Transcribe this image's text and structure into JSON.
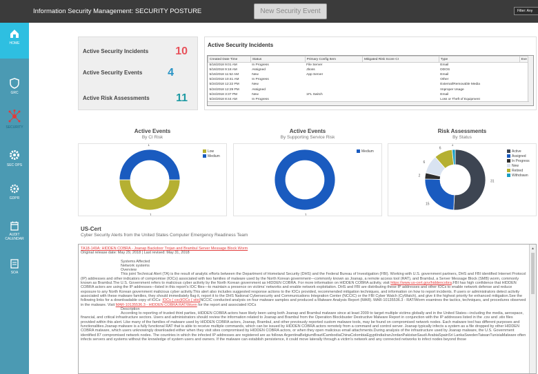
{
  "app": {
    "title": "Information Security Management: SECURITY POSTURE"
  },
  "toolbar": {
    "new_event_label": "New Security Event",
    "filter_label": "Filter: Any"
  },
  "sidebar": {
    "items": [
      {
        "label": "HOME",
        "icon": "home-icon",
        "active": true
      },
      {
        "label": "GRC",
        "icon": "shield-icon",
        "active": false
      },
      {
        "label": "SECURITY",
        "icon": "network-icon",
        "active": false
      },
      {
        "label": "SEC OPS",
        "icon": "gear-icon",
        "active": false
      },
      {
        "label": "GDPR",
        "icon": "gdpr-gear-icon",
        "active": false
      },
      {
        "label": "AUDIT CALENDAR",
        "icon": "calendar-icon",
        "active": false
      },
      {
        "label": "SOA",
        "icon": "document-icon",
        "active": false
      }
    ]
  },
  "kpis": [
    {
      "label": "Active Security Incidents",
      "value": "10",
      "color": "#e8515a"
    },
    {
      "label": "Active Security Events",
      "value": "4",
      "color": "#2793c5"
    },
    {
      "label": "Active Risk Assessments",
      "value": "11",
      "color": "#1d9aa3"
    }
  ],
  "incidents": {
    "title": "Active Security Incidents",
    "columns": [
      "Created Date Time",
      "Status",
      "Primary Config Item",
      "Mitigated Risk Score CI",
      "Type",
      "Eve"
    ],
    "rows": [
      [
        "5/16/2018 9:01 AM",
        "In Progress",
        "File Server",
        "",
        "Email",
        ""
      ],
      [
        "5/16/2018 9:18 AM",
        "Assigned",
        "Jboss",
        "",
        "DDOS",
        ""
      ],
      [
        "5/16/2018 11:52 AM",
        "New",
        "App Server",
        "",
        "Email",
        ""
      ],
      [
        "5/24/2018 10:41 AM",
        "In Progress",
        "",
        "",
        "Other",
        ""
      ],
      [
        "5/24/2018 12:22 PM",
        "New",
        "",
        "",
        "External/Removable Media",
        ""
      ],
      [
        "5/24/2018 12:29 PM",
        "Assigned",
        "",
        "",
        "Improper Usage",
        ""
      ],
      [
        "5/24/2018 3:37 PM",
        "New",
        "1FL Switch",
        "",
        "Email",
        ""
      ],
      [
        "5/24/2018 8:44 AM",
        "In Progress",
        "",
        "",
        "Loss or Theft of Equipment",
        ""
      ]
    ]
  },
  "charts": {
    "ci_risk": {
      "title": "Active Events",
      "subtitle": "By CI Risk",
      "legend": [
        "Low",
        "Medium"
      ]
    },
    "service_risk": {
      "title": "Active Events",
      "subtitle": "By Supporting Service Risk",
      "legend": [
        "Medium"
      ]
    },
    "risk_status": {
      "title": "Risk Assessments",
      "subtitle": "By Status",
      "legend": [
        "Active",
        "Assigned",
        "In Progress",
        "New",
        "Retired",
        "Withdrawn"
      ]
    }
  },
  "chart_data": [
    {
      "type": "pie",
      "title": "Active Events",
      "subtitle": "By CI Risk",
      "labels": [
        "Low",
        "Medium"
      ],
      "values": [
        1,
        1
      ],
      "colors": [
        "#b5b032",
        "#1a5bbf"
      ],
      "legend_position": "top-right"
    },
    {
      "type": "pie",
      "title": "Active Events",
      "subtitle": "By Supporting Service Risk",
      "labels": [
        "Medium"
      ],
      "values": [
        1
      ],
      "colors": [
        "#1a5bbf"
      ],
      "legend_position": "top-right"
    },
    {
      "type": "pie",
      "title": "Risk Assessments",
      "subtitle": "By Status",
      "labels": [
        "Active",
        "Assigned",
        "In Progress",
        "New",
        "Retired",
        "Withdrawn"
      ],
      "values": [
        31,
        15,
        2,
        6,
        6,
        1
      ],
      "colors": [
        "#3d4552",
        "#1a5bbf",
        "#2d2d2d",
        "#d9e3f1",
        "#b5b032",
        "#1a9ec4"
      ],
      "legend_position": "top-right"
    }
  ],
  "uscert": {
    "title": "US-Cert",
    "subtitle": "Cyber Security Alerts from the United States Computer Emergency Readiness Team",
    "alert_link": "TA18-149A: HIDDEN COBRA - Joanap Backdoor Trojan and Brambul Server Message Block Worm",
    "release_line": "Original release date: May 29, 2018 | Last revised: May 31, 2018",
    "sections": [
      "Systems Affected",
      "Network systems",
      "Overview"
    ],
    "para1_a": "This joint Technical Alert (TA) is the result of analytic efforts between the Department of Homeland Security (DHS) and the Federal Bureau of Investigation (FBI). Working with U.S. government partners, DHS and FBI identified Internet Protocol (IP) addresses and other indicators of compromise (IOCs) associated with two families of malware used by the North Korean government—commonly known as Joanap, a remote access tool (RAT), and Brambul, a Server Message Block (SMB) worm, commonly known as Brambul.The U.S. Government refers to malicious cyber activity by the North Korean government as HIDDEN COBRA. For more information on HIDDEN COBRA activity, visit",
    "para1_link": "https://www.us-cert.gov/hiddencobra",
    "para1_b": ".FBI has high confidence that HIDDEN COBRA actors are using the IP addresses—listed in this report’s IOC files—to maintain a presence on victims’ networks and enable network exploitation. DHS and FBI are distributing these IP addresses and other IOCs to enable network defense and reduce exposure to any North Korean government malicious cyber activity.This alert also includes suggested response actions to the IOCs provided, recommended mitigation techniques, and information on how to report incidents. If users or administrators detect activity associated with these malware families, they should immediately flag it, report it to the DHS National Cybersecurity and Communications Integration Center (NCCIC) or the FBI Cyber Watch (CyWatch), and give it the highest priority for enhanced mitigation.See the following links for a downloadable copy of IOCs:",
    "ioc_links": "IOCs ( csv)IOCs ( stix)",
    "para1_c": "NCCIC conducted analysis on four malware samples and produced a Malware Analysis Report (MAR). MAR-10135536.3 - RAT/Worm examines the tactics, techniques, and procedures observed in the malware. Visit",
    "mar_link": "MAR-10135536.3 - HIDDEN COBRA RAT/Worm",
    "para1_d": "for the report and associated IOCs",
    "description_heading": "Description",
    "para2": "According to reporting of trusted third parties, HIDDEN COBRA actors have likely been using both Joanap and Brambul malware since at least 2009 to target multiple victims globally and in the United States—including the media, aerospace, financial, and critical infrastructure sectors. Users and administrators should review the information related to Joanap and Brambul from the Operation Blockbuster Destructive Malware Report in conjunction with the IP addresses listed in the .csv and .stix files provided within this alert. Like many of the families of malware used by HIDDEN COBRA actors, Joanap, Brambul, and other previously reported custom malware tools, may be found on compromised network nodes. Each malware tool has different purposes and functionalities.Joanap malware is a fully functional RAT that is able to receive multiple commands, which can be issued by HIDDEN COBRA actors remotely from a command and control server. Joanap typically infects a system as a file dropped by other HIDDEN COBRA malware, which users unknowingly downloaded either when they visit sites compromised by HIDDEN COBRA actors, or when they open malicious email attachments.During analysis of the infrastructure used by Joanap malware, the U.S. Government identified 87 compromised network nodes. The countries in which the infected IP addresses are registered are as follows ArgentinaBelgiumBrazilCambodiaChinaColombiaEgyptIndiaIranJordanPakistanSaudi ArabiaSpainSri LankaSwedenTaiwanTunisiaMalware often infects servers and systems without the knowledge of system users and owners. If the malware can establish persistence, it could move laterally through a victim’s network and any connected networks to infect nodes beyond those"
  }
}
